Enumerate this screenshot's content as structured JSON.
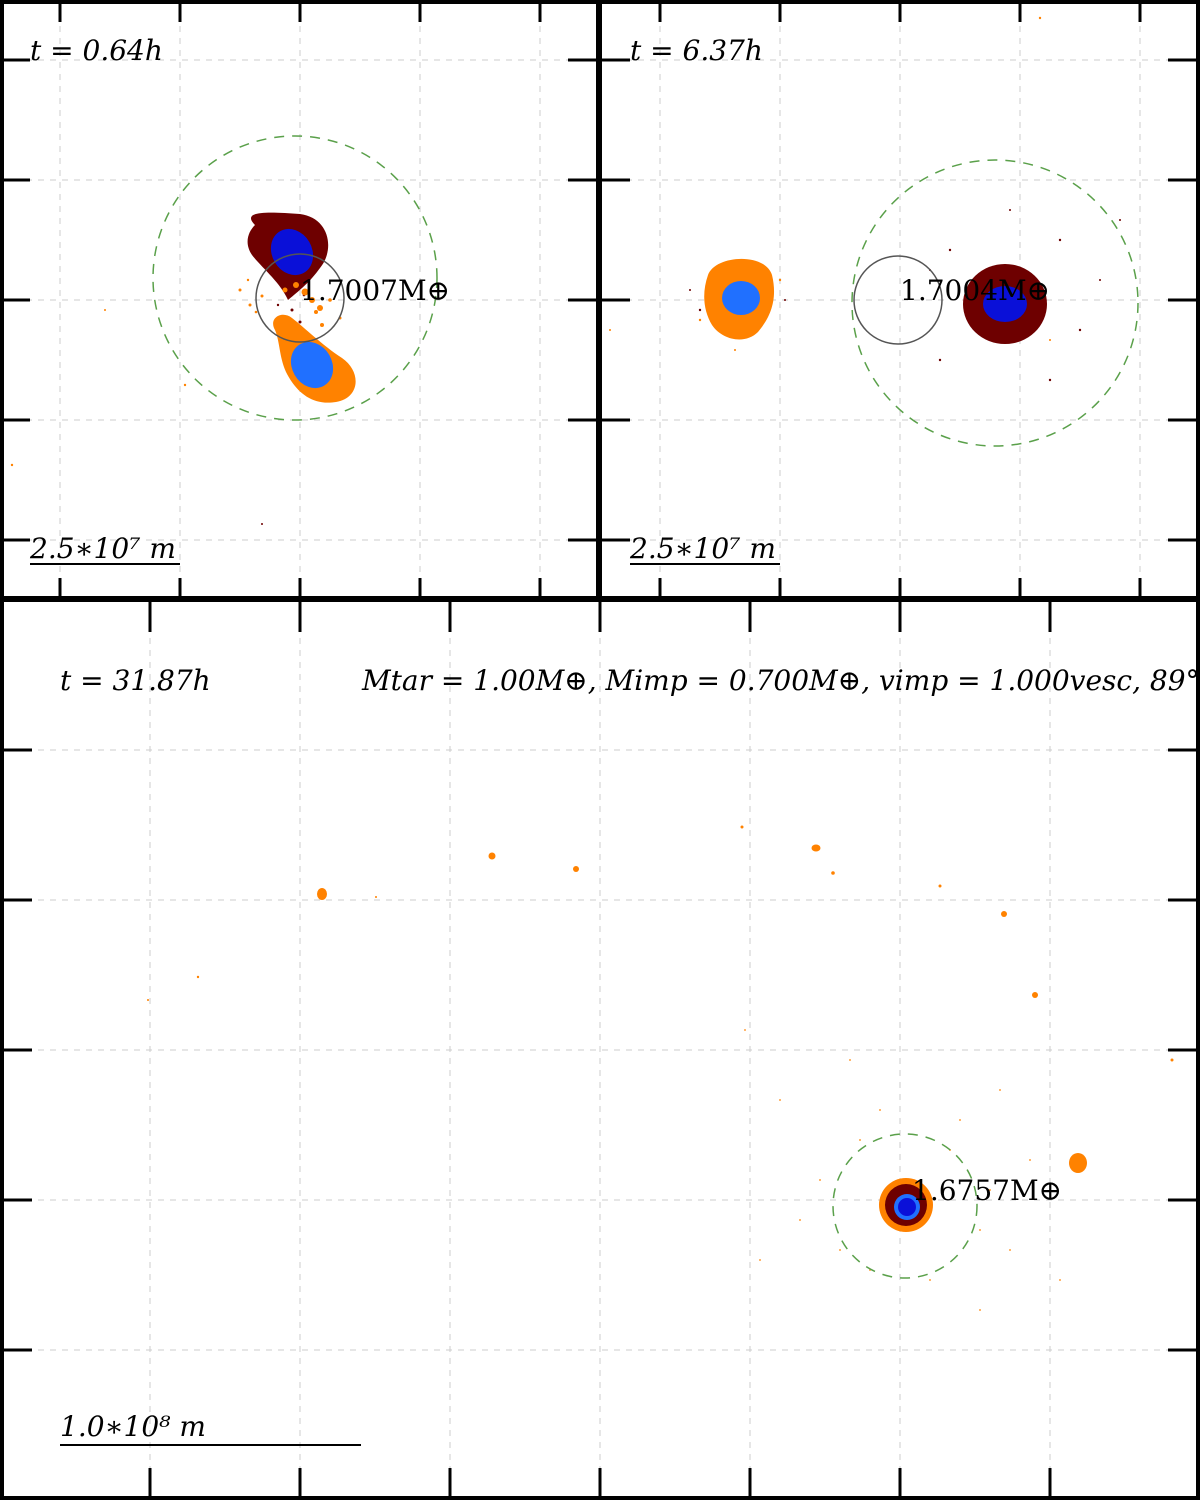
{
  "panels": {
    "top_left": {
      "time_label": "t = 0.64h",
      "mass_label": "1.7007M⊕",
      "scale_label": "2.5∗10⁷ m"
    },
    "top_right": {
      "time_label": "t = 6.37h",
      "mass_label": "1.7004M⊕",
      "scale_label": "2.5∗10⁷ m"
    },
    "bottom": {
      "time_label": "t = 31.87h",
      "params_label": "Mtar = 1.00M⊕, Mimp = 0.700M⊕, vimp = 1.000vesc, 89°",
      "mass_label": "1.6757M⊕",
      "scale_label": "1.0∗10⁸ m"
    }
  },
  "colors": {
    "mantle_target": "#6e0000",
    "mantle_impactor": "#ff8200",
    "core_target": "#0a10d8",
    "core_impactor": "#2070ff",
    "hill_sphere": "#5aa04a",
    "reference_circle": "#555555",
    "grid": "#cccccc"
  }
}
